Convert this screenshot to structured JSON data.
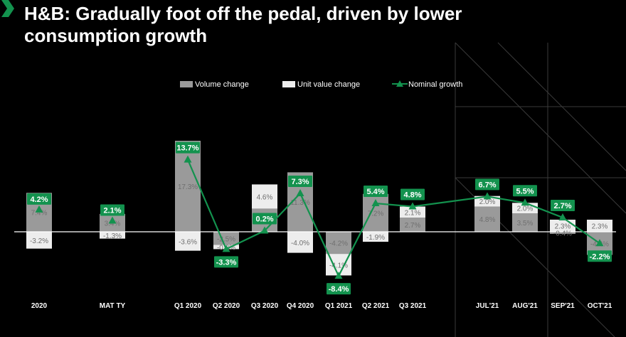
{
  "title": "H&B: Gradually foot off the pedal, driven by lower consumption growth",
  "colors": {
    "background": "#000000",
    "volume": "#9a9a9a",
    "unit_value": "#ededed",
    "nominal": "#13924e",
    "label_text": "#6f6f6f"
  },
  "chart_data": {
    "type": "bar",
    "stacked": true,
    "categories": [
      "2020",
      "MAT TY",
      "Q1 2020",
      "Q2 2020",
      "Q3 2020",
      "Q4 2020",
      "Q1 2021",
      "Q2 2021",
      "Q3 2021",
      "JUL'21",
      "AUG'21",
      "SEP'21",
      "OCT'21"
    ],
    "series": [
      {
        "name": "Volume change",
        "kind": "bar",
        "values": [
          7.4,
          3.4,
          17.3,
          -2.5,
          4.4,
          11.3,
          -4.2,
          7.2,
          2.7,
          4.8,
          3.5,
          -0.4,
          -4.4
        ],
        "labels": [
          "7.4%",
          "3.4%",
          "17.3%",
          "-2.5%",
          "4.4%",
          "11.3%",
          "-4.2%",
          "7.2%",
          "2.7%",
          "4.8%",
          "3.5%",
          "-0.4%",
          "-4.4%"
        ]
      },
      {
        "name": "Unit value change",
        "kind": "bar",
        "values": [
          -3.2,
          -1.3,
          -3.6,
          -0.8,
          4.6,
          -4.0,
          -4.1,
          -1.9,
          2.1,
          2.0,
          2.0,
          2.3,
          2.3
        ],
        "labels": [
          "-3.2%",
          "-1.3%",
          "-3.6%",
          "-0.8%",
          "4.6%",
          "-4.0%",
          "-4.1%",
          "-1.9%",
          "2.1%",
          "2.0%",
          "2.0%",
          "2.3%",
          "2.3%"
        ]
      },
      {
        "name": "Nominal growth",
        "kind": "line",
        "values": [
          4.2,
          2.1,
          13.7,
          -3.3,
          0.2,
          7.3,
          -8.4,
          5.4,
          4.8,
          6.7,
          5.5,
          2.7,
          -2.2
        ],
        "labels": [
          "4.2%",
          "2.1%",
          "13.7%",
          "-3.3%",
          "0.2%",
          "7.3%",
          "-8.4%",
          "5.4%",
          "4.8%",
          "6.7%",
          "5.5%",
          "2.7%",
          "-2.2%"
        ]
      }
    ],
    "line_connected_from_index": 2,
    "legend_position": "top",
    "grid": false
  }
}
